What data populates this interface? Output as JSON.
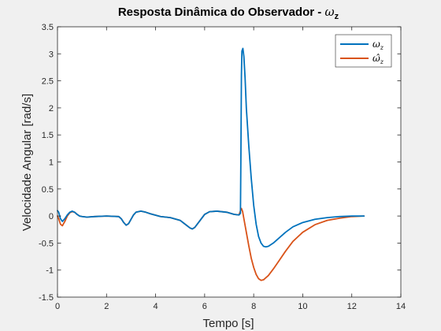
{
  "chart_data": {
    "type": "line",
    "title_text": "Resposta Dinâmica do Observador - ",
    "title_symbol": "ω",
    "title_subscript": "z",
    "xlabel": "Tempo [s]",
    "ylabel": "Velocidade Angular [rad/s]",
    "xlim": [
      0,
      14
    ],
    "ylim": [
      -1.5,
      3.5
    ],
    "xticks": [
      0,
      2,
      4,
      6,
      8,
      10,
      12,
      14
    ],
    "xtick_labels": [
      "0",
      "2",
      "4",
      "6",
      "8",
      "10",
      "12",
      "14"
    ],
    "yticks": [
      -1.5,
      -1,
      -0.5,
      0,
      0.5,
      1,
      1.5,
      2,
      2.5,
      3,
      3.5
    ],
    "ytick_labels": [
      "-1.5",
      "-1",
      "-0.5",
      "0",
      "0.5",
      "1",
      "1.5",
      "2",
      "2.5",
      "3",
      "3.5"
    ],
    "grid": false,
    "legend_position": "top-right",
    "series": [
      {
        "name": "ω_z",
        "legend_symbol": "ω",
        "legend_subscript": "z",
        "color": "#0072BD",
        "x": [
          0,
          0.05,
          0.12,
          0.2,
          0.3,
          0.4,
          0.5,
          0.6,
          0.7,
          0.8,
          0.9,
          1.0,
          1.2,
          1.5,
          2.0,
          2.5,
          2.6,
          2.7,
          2.8,
          2.9,
          3.0,
          3.1,
          3.2,
          3.4,
          3.6,
          3.8,
          4.2,
          4.6,
          5.0,
          5.2,
          5.4,
          5.5,
          5.6,
          5.8,
          6.0,
          6.2,
          6.5,
          6.9,
          7.2,
          7.4,
          7.46,
          7.48,
          7.5,
          7.52,
          7.56,
          7.6,
          7.65,
          7.7,
          7.8,
          7.9,
          8.0,
          8.1,
          8.2,
          8.3,
          8.4,
          8.5,
          8.6,
          8.8,
          9.0,
          9.3,
          9.6,
          10.0,
          10.5,
          11.0,
          11.5,
          12.0,
          12.5
        ],
        "y": [
          0.1,
          0.07,
          -0.05,
          -0.1,
          -0.05,
          0.02,
          0.07,
          0.09,
          0.07,
          0.03,
          0.0,
          -0.01,
          -0.02,
          -0.01,
          0.0,
          -0.01,
          -0.05,
          -0.12,
          -0.17,
          -0.14,
          -0.06,
          0.02,
          0.07,
          0.09,
          0.07,
          0.04,
          -0.01,
          -0.03,
          -0.08,
          -0.15,
          -0.22,
          -0.24,
          -0.21,
          -0.09,
          0.03,
          0.08,
          0.09,
          0.07,
          0.03,
          0.02,
          0.05,
          1.2,
          2.6,
          3.05,
          3.1,
          2.95,
          2.55,
          2.0,
          1.3,
          0.7,
          0.2,
          -0.15,
          -0.38,
          -0.5,
          -0.56,
          -0.57,
          -0.56,
          -0.5,
          -0.42,
          -0.3,
          -0.2,
          -0.12,
          -0.06,
          -0.03,
          -0.01,
          0.0,
          0.0
        ]
      },
      {
        "name": "ω̂_z",
        "legend_symbol": "ω̂",
        "legend_subscript": "z",
        "color": "#D95319",
        "x": [
          0,
          0.05,
          0.12,
          0.2,
          0.3,
          0.4,
          0.5,
          0.6,
          0.7,
          0.8,
          0.9,
          1.0,
          1.2,
          1.5,
          2.0,
          2.5,
          2.6,
          2.7,
          2.8,
          2.9,
          3.0,
          3.1,
          3.2,
          3.4,
          3.6,
          3.8,
          4.2,
          4.6,
          5.0,
          5.2,
          5.4,
          5.5,
          5.6,
          5.8,
          6.0,
          6.2,
          6.5,
          6.9,
          7.2,
          7.4,
          7.48,
          7.5,
          7.55,
          7.6,
          7.7,
          7.8,
          7.9,
          8.0,
          8.1,
          8.2,
          8.3,
          8.4,
          8.6,
          8.8,
          9.0,
          9.3,
          9.6,
          10.0,
          10.5,
          11.0,
          11.5,
          12.0,
          12.5
        ],
        "y": [
          0.0,
          -0.05,
          -0.15,
          -0.18,
          -0.1,
          0.0,
          0.06,
          0.08,
          0.07,
          0.03,
          0.0,
          -0.01,
          -0.02,
          -0.01,
          0.0,
          -0.01,
          -0.05,
          -0.12,
          -0.17,
          -0.14,
          -0.06,
          0.02,
          0.07,
          0.09,
          0.07,
          0.04,
          -0.01,
          -0.03,
          -0.08,
          -0.15,
          -0.22,
          -0.24,
          -0.21,
          -0.09,
          0.03,
          0.08,
          0.09,
          0.07,
          0.03,
          0.02,
          0.12,
          0.14,
          0.08,
          -0.05,
          -0.3,
          -0.55,
          -0.78,
          -0.95,
          -1.08,
          -1.16,
          -1.19,
          -1.18,
          -1.1,
          -0.98,
          -0.85,
          -0.65,
          -0.47,
          -0.3,
          -0.16,
          -0.08,
          -0.04,
          -0.01,
          0.0
        ]
      }
    ]
  },
  "colors": {
    "figure_background": "#f0f0f0",
    "axes_background": "#ffffff",
    "axes_color": "#262626"
  }
}
